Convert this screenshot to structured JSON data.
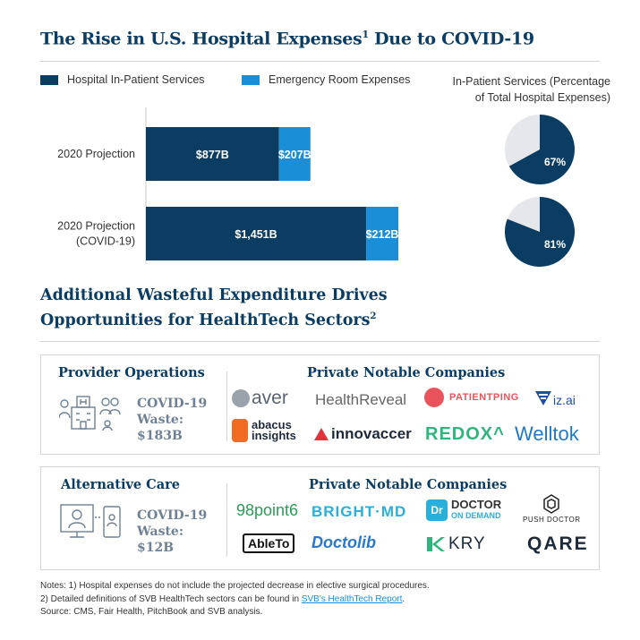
{
  "title": {
    "main": "The Rise in U.S. Hospital Expenses",
    "sup": "1",
    "tail": " Due to COVID-19"
  },
  "legend": {
    "inpatient": "Hospital In-Patient Services",
    "er": "Emergency Room Expenses"
  },
  "colors": {
    "navy": "#0b3d63",
    "blue": "#1a8fd8",
    "pie_light": "#e6e7ea",
    "grey_text": "#6f8193"
  },
  "chart_data": [
    {
      "type": "bar",
      "orientation": "horizontal",
      "stacked": true,
      "categories": [
        "2020 Projection",
        "2020 Projection\n(COVID-19)"
      ],
      "category_lines": [
        [
          "2020 Projection"
        ],
        [
          "2020 Projection",
          "(COVID-19)"
        ]
      ],
      "series": [
        {
          "name": "Hospital In-Patient Services",
          "values": [
            877,
            1451
          ],
          "labels": [
            "$877B",
            "$1,451B"
          ]
        },
        {
          "name": "Emergency Room Expenses",
          "values": [
            207,
            212
          ],
          "labels": [
            "$207B",
            "$212B"
          ]
        }
      ],
      "unit": "$B",
      "title": "The Rise in U.S. Hospital Expenses Due to COVID-19"
    },
    {
      "type": "pie",
      "title": "In-Patient Services (Percentage of Total Hospital Expenses)",
      "title_lines": [
        "In-Patient Services (Percentage",
        "of Total Hospital Expenses)"
      ],
      "slices": [
        {
          "category": "2020 Projection",
          "value": 67,
          "label": "67%"
        },
        {
          "category": "2020 Projection (COVID-19)",
          "value": 81,
          "label": "81%"
        }
      ]
    }
  ],
  "section2": {
    "title_line1": "Additional Wasteful Expenditure Drives",
    "title_line2": "Opportunities for HealthTech Sectors",
    "sup": "2"
  },
  "provider": {
    "title": "Provider Operations",
    "waste_lines": [
      "COVID-19",
      "Waste:",
      "$183B"
    ],
    "companies_title": "Private Notable Companies",
    "logos": [
      "aver",
      "HealthReveal",
      "PATIENTPING",
      "iz.ai",
      "abacus",
      "insights",
      "innovaccer",
      "REDOX^",
      "Welltok"
    ]
  },
  "alt": {
    "title": "Alternative Care",
    "waste_lines": [
      "COVID-19",
      "Waste:",
      "$12B"
    ],
    "companies_title": "Private Notable Companies",
    "logos": [
      "98point6",
      "BRIGHT·MD",
      "DOCTOR",
      "ON DEMAND",
      "PUSH DOCTOR",
      "AbleTo",
      "Doctolib",
      "KRY",
      "QARE"
    ]
  },
  "notes": {
    "line1": "Notes: 1) Hospital expenses do not include the projected decrease in elective surgical procedures.",
    "line2_pre": "2) Detailed definitions of SVB HealthTech sectors can be found in ",
    "line2_link": "SVB's HealthTech Report",
    "line2_post": ".",
    "line3": "Source: CMS, Fair Health, PitchBook and SVB analysis."
  }
}
